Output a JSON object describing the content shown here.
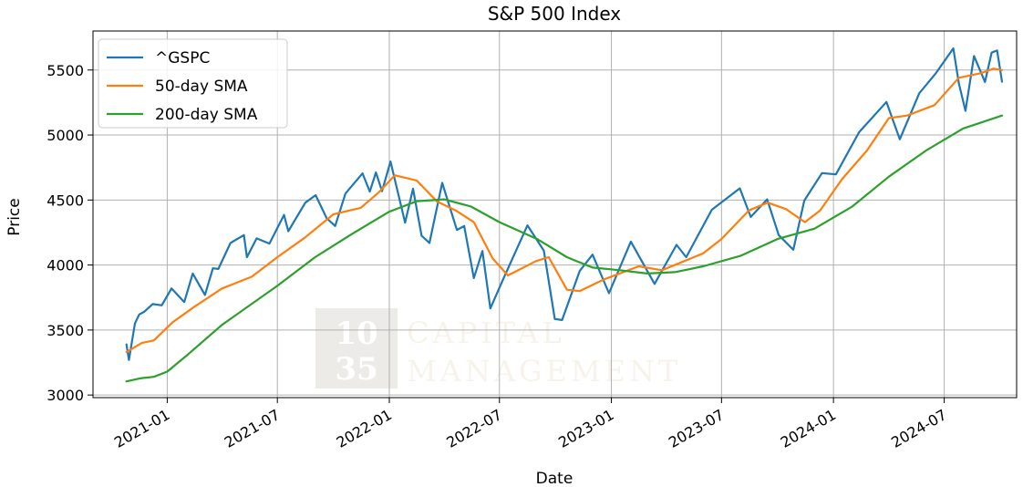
{
  "chart_data": {
    "type": "line",
    "title": "S&P 500 Index",
    "xlabel": "Date",
    "ylabel": "Price",
    "x_tick_labels": [
      "2021-01",
      "2021-07",
      "2022-01",
      "2022-07",
      "2023-01",
      "2023-07",
      "2024-01",
      "2024-07"
    ],
    "x_tick_dates": [
      "2021-01-01",
      "2021-07-01",
      "2022-01-01",
      "2022-07-01",
      "2023-01-01",
      "2023-07-01",
      "2024-01-01",
      "2024-07-01"
    ],
    "xlim": [
      "2020-09-01",
      "2024-10-28"
    ],
    "yticks": [
      3000,
      3500,
      4000,
      4500,
      5000,
      5500
    ],
    "ylim": [
      2980,
      5800
    ],
    "grid": true,
    "legend_position": "top-left",
    "watermark": {
      "number_top": "10",
      "number_bottom": "35",
      "line1": "CAPITAL",
      "line2": "MANAGEMENT"
    },
    "series": [
      {
        "name": "^GSPC",
        "color": "#1f77b4",
        "points": [
          [
            "2020-10-26",
            3390
          ],
          [
            "2020-10-30",
            3270
          ],
          [
            "2020-11-09",
            3550
          ],
          [
            "2020-11-16",
            3620
          ],
          [
            "2020-11-24",
            3640
          ],
          [
            "2020-12-08",
            3700
          ],
          [
            "2020-12-23",
            3690
          ],
          [
            "2021-01-08",
            3820
          ],
          [
            "2021-01-29",
            3715
          ],
          [
            "2021-02-12",
            3935
          ],
          [
            "2021-03-04",
            3770
          ],
          [
            "2021-03-17",
            3975
          ],
          [
            "2021-03-26",
            3970
          ],
          [
            "2021-04-15",
            4170
          ],
          [
            "2021-05-07",
            4230
          ],
          [
            "2021-05-12",
            4060
          ],
          [
            "2021-05-28",
            4205
          ],
          [
            "2021-06-18",
            4165
          ],
          [
            "2021-07-12",
            4385
          ],
          [
            "2021-07-19",
            4260
          ],
          [
            "2021-08-16",
            4480
          ],
          [
            "2021-09-02",
            4537
          ],
          [
            "2021-09-20",
            4360
          ],
          [
            "2021-10-04",
            4300
          ],
          [
            "2021-10-21",
            4550
          ],
          [
            "2021-11-18",
            4705
          ],
          [
            "2021-11-30",
            4565
          ],
          [
            "2021-12-10",
            4712
          ],
          [
            "2021-12-20",
            4568
          ],
          [
            "2022-01-03",
            4796
          ],
          [
            "2022-01-27",
            4326
          ],
          [
            "2022-02-09",
            4587
          ],
          [
            "2022-02-23",
            4225
          ],
          [
            "2022-03-08",
            4170
          ],
          [
            "2022-03-29",
            4632
          ],
          [
            "2022-04-22",
            4270
          ],
          [
            "2022-05-04",
            4300
          ],
          [
            "2022-05-20",
            3900
          ],
          [
            "2022-06-03",
            4108
          ],
          [
            "2022-06-16",
            3666
          ],
          [
            "2022-07-08",
            3900
          ],
          [
            "2022-08-16",
            4305
          ],
          [
            "2022-09-12",
            4110
          ],
          [
            "2022-09-30",
            3585
          ],
          [
            "2022-10-12",
            3577
          ],
          [
            "2022-11-10",
            3956
          ],
          [
            "2022-12-01",
            4080
          ],
          [
            "2022-12-28",
            3783
          ],
          [
            "2023-02-02",
            4180
          ],
          [
            "2023-03-13",
            3855
          ],
          [
            "2023-04-18",
            4155
          ],
          [
            "2023-05-04",
            4060
          ],
          [
            "2023-06-15",
            4425
          ],
          [
            "2023-07-31",
            4590
          ],
          [
            "2023-08-18",
            4370
          ],
          [
            "2023-09-14",
            4505
          ],
          [
            "2023-10-03",
            4230
          ],
          [
            "2023-10-27",
            4117
          ],
          [
            "2023-11-14",
            4495
          ],
          [
            "2023-12-13",
            4707
          ],
          [
            "2024-01-05",
            4697
          ],
          [
            "2024-02-12",
            5021
          ],
          [
            "2024-03-28",
            5254
          ],
          [
            "2024-04-19",
            4967
          ],
          [
            "2024-05-21",
            5321
          ],
          [
            "2024-06-17",
            5473
          ],
          [
            "2024-07-16",
            5667
          ],
          [
            "2024-07-25",
            5399
          ],
          [
            "2024-08-05",
            5186
          ],
          [
            "2024-08-19",
            5608
          ],
          [
            "2024-09-06",
            5408
          ],
          [
            "2024-09-17",
            5634
          ],
          [
            "2024-09-26",
            5650
          ],
          [
            "2024-10-04",
            5410
          ]
        ]
      },
      {
        "name": "50-day SMA",
        "color": "#ff7f0e",
        "points": [
          [
            "2020-10-26",
            3330
          ],
          [
            "2020-11-20",
            3400
          ],
          [
            "2020-12-10",
            3420
          ],
          [
            "2021-01-10",
            3560
          ],
          [
            "2021-02-15",
            3680
          ],
          [
            "2021-04-01",
            3820
          ],
          [
            "2021-05-20",
            3910
          ],
          [
            "2021-07-01",
            4060
          ],
          [
            "2021-08-15",
            4210
          ],
          [
            "2021-10-01",
            4390
          ],
          [
            "2021-11-15",
            4440
          ],
          [
            "2021-12-15",
            4560
          ],
          [
            "2022-01-10",
            4690
          ],
          [
            "2022-02-15",
            4650
          ],
          [
            "2022-03-20",
            4490
          ],
          [
            "2022-04-20",
            4420
          ],
          [
            "2022-05-20",
            4330
          ],
          [
            "2022-06-20",
            4050
          ],
          [
            "2022-07-15",
            3920
          ],
          [
            "2022-08-30",
            4030
          ],
          [
            "2022-09-20",
            4060
          ],
          [
            "2022-10-20",
            3810
          ],
          [
            "2022-11-10",
            3800
          ],
          [
            "2022-12-20",
            3890
          ],
          [
            "2023-02-15",
            3990
          ],
          [
            "2023-03-25",
            3960
          ],
          [
            "2023-05-01",
            4030
          ],
          [
            "2023-06-01",
            4090
          ],
          [
            "2023-07-01",
            4200
          ],
          [
            "2023-08-15",
            4420
          ],
          [
            "2023-09-15",
            4480
          ],
          [
            "2023-10-15",
            4430
          ],
          [
            "2023-11-15",
            4330
          ],
          [
            "2023-12-10",
            4420
          ],
          [
            "2024-01-15",
            4660
          ],
          [
            "2024-02-25",
            4880
          ],
          [
            "2024-04-01",
            5130
          ],
          [
            "2024-05-01",
            5150
          ],
          [
            "2024-06-15",
            5230
          ],
          [
            "2024-07-25",
            5440
          ],
          [
            "2024-08-30",
            5475
          ],
          [
            "2024-09-20",
            5510
          ],
          [
            "2024-10-04",
            5500
          ]
        ]
      },
      {
        "name": "200-day SMA",
        "color": "#2ca02c",
        "points": [
          [
            "2020-10-26",
            3105
          ],
          [
            "2020-11-20",
            3130
          ],
          [
            "2020-12-10",
            3140
          ],
          [
            "2021-01-01",
            3180
          ],
          [
            "2021-02-01",
            3300
          ],
          [
            "2021-04-01",
            3540
          ],
          [
            "2021-07-01",
            3840
          ],
          [
            "2021-09-01",
            4060
          ],
          [
            "2021-11-01",
            4240
          ],
          [
            "2022-01-01",
            4410
          ],
          [
            "2022-02-15",
            4490
          ],
          [
            "2022-04-01",
            4505
          ],
          [
            "2022-05-15",
            4450
          ],
          [
            "2022-07-01",
            4330
          ],
          [
            "2022-09-01",
            4200
          ],
          [
            "2022-10-20",
            4060
          ],
          [
            "2022-12-01",
            3980
          ],
          [
            "2023-01-15",
            3960
          ],
          [
            "2023-03-01",
            3935
          ],
          [
            "2023-04-15",
            3945
          ],
          [
            "2023-06-01",
            3990
          ],
          [
            "2023-08-01",
            4070
          ],
          [
            "2023-10-01",
            4200
          ],
          [
            "2023-12-01",
            4280
          ],
          [
            "2024-02-01",
            4450
          ],
          [
            "2024-04-01",
            4680
          ],
          [
            "2024-06-01",
            4880
          ],
          [
            "2024-08-01",
            5050
          ],
          [
            "2024-10-04",
            5150
          ]
        ]
      }
    ]
  }
}
